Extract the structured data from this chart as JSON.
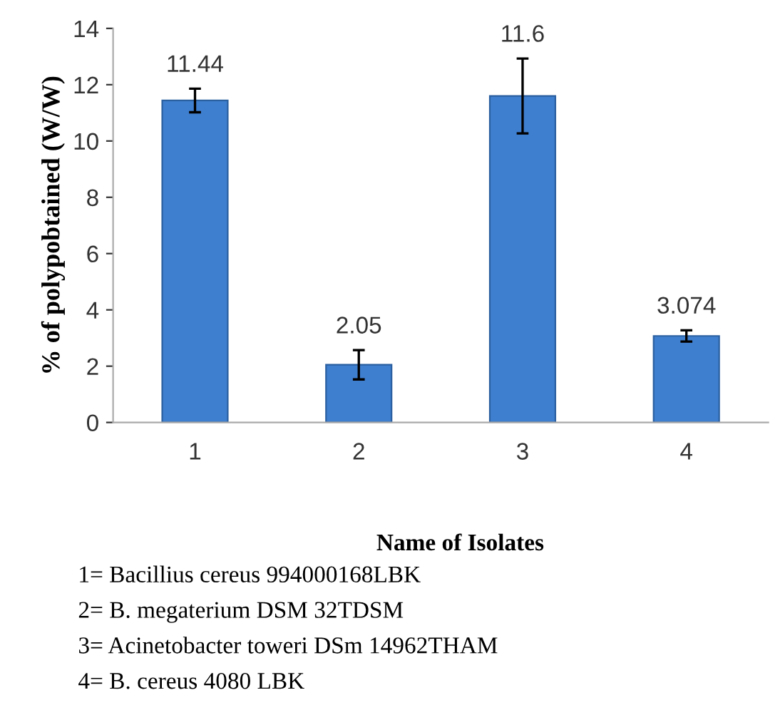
{
  "chart_data": {
    "type": "bar",
    "ylabel": "% of polypobtained (W/W)",
    "xlabel": "Name of Isolates",
    "categories": [
      "1",
      "2",
      "3",
      "4"
    ],
    "values": [
      11.44,
      2.05,
      11.6,
      3.074
    ],
    "errors": [
      0.42,
      0.52,
      1.33,
      0.2
    ],
    "color": "#3f7fcf",
    "data_labels": true,
    "ylim": [
      0,
      14
    ],
    "yticks": [
      0,
      2,
      4,
      6,
      8,
      10,
      12,
      14
    ],
    "grid": false,
    "annotations": [
      "1= Bacillius cereus 994000168LBK",
      "2= B. megaterium DSM 32TDSM",
      "3= Acinetobacter toweri DSm 14962THAM",
      "4= B. cereus 4080 LBK"
    ]
  }
}
